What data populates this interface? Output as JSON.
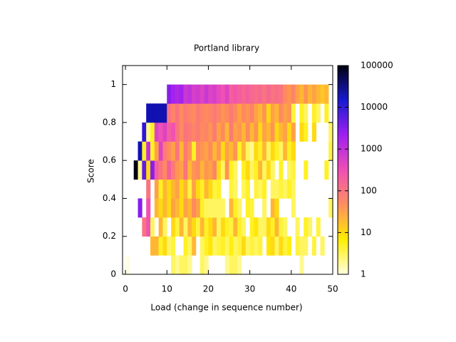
{
  "chart_data": {
    "type": "heatmap",
    "title": "Portland library",
    "xlabel": "Load (change in sequence number)",
    "ylabel": "Score",
    "x_bins": [
      0,
      1,
      2,
      3,
      4,
      5,
      6,
      7,
      8,
      9,
      10,
      11,
      12,
      13,
      14,
      15,
      16,
      17,
      18,
      19,
      20,
      21,
      22,
      23,
      24,
      25,
      26,
      27,
      28,
      29,
      30,
      31,
      32,
      33,
      34,
      35,
      36,
      37,
      38,
      39,
      40,
      41,
      42,
      43,
      44,
      45,
      46,
      47,
      48,
      49,
      50
    ],
    "y_bins": [
      0,
      0.1,
      0.2,
      0.3,
      0.4,
      0.5,
      0.6,
      0.7,
      0.8,
      0.9,
      1.0
    ],
    "z": [
      [
        1,
        null,
        null,
        null,
        null,
        null,
        null,
        null,
        null,
        null,
        null,
        3,
        2,
        3,
        3,
        2,
        null,
        null,
        3,
        2,
        null,
        null,
        null,
        null,
        2,
        3,
        3,
        2,
        null,
        null,
        null,
        null,
        null,
        null,
        null,
        null,
        null,
        null,
        null,
        null,
        null,
        null,
        2,
        null,
        null,
        null,
        null,
        null,
        null,
        null
      ],
      [
        null,
        null,
        null,
        null,
        null,
        null,
        20,
        20,
        5,
        10,
        3,
        4,
        null,
        null,
        5,
        3,
        20,
        null,
        3,
        5,
        8,
        3,
        4,
        5,
        3,
        6,
        3,
        4,
        10,
        3,
        4,
        3,
        4,
        null,
        8,
        10,
        3,
        10,
        4,
        6,
        null,
        4,
        3,
        3,
        null,
        4,
        null,
        3,
        null,
        null
      ],
      [
        null,
        null,
        null,
        null,
        100,
        300,
        3,
        null,
        20,
        3,
        null,
        10,
        4,
        20,
        3,
        20,
        10,
        4,
        20,
        5,
        10,
        20,
        3,
        10,
        5,
        4,
        20,
        5,
        3,
        null,
        5,
        8,
        3,
        3,
        10,
        5,
        20,
        4,
        3,
        null,
        null,
        3,
        null,
        5,
        3,
        null,
        4,
        null,
        null,
        null
      ],
      [
        null,
        null,
        null,
        3000,
        null,
        300,
        null,
        20,
        10,
        20,
        10,
        30,
        20,
        10,
        30,
        20,
        50,
        30,
        5,
        3,
        3,
        3,
        3,
        3,
        null,
        20,
        5,
        3,
        null,
        5,
        4,
        null,
        null,
        3,
        null,
        20,
        10,
        null,
        null,
        null,
        3,
        null,
        null,
        null,
        null,
        null,
        null,
        null,
        null,
        3
      ],
      [
        null,
        null,
        null,
        null,
        null,
        100,
        null,
        30,
        5,
        20,
        10,
        20,
        30,
        10,
        20,
        4,
        30,
        10,
        5,
        20,
        10,
        4,
        5,
        null,
        null,
        4,
        3,
        null,
        3,
        5,
        null,
        4,
        3,
        5,
        null,
        3,
        3,
        4,
        3,
        5,
        3,
        null,
        null,
        null,
        null,
        null,
        null,
        null,
        null,
        null
      ],
      [
        null,
        null,
        100000,
        2,
        5000,
        10,
        3000,
        200,
        100,
        50,
        200,
        80,
        40,
        30,
        100,
        20,
        40,
        50,
        20,
        40,
        30,
        60,
        10,
        3,
        40,
        5,
        3,
        null,
        5,
        10,
        3,
        5,
        20,
        3,
        10,
        3,
        null,
        5,
        null,
        3,
        4,
        null,
        null,
        5,
        null,
        null,
        null,
        null,
        5,
        null
      ],
      [
        null,
        null,
        null,
        20000,
        5,
        1000,
        5,
        30,
        500,
        80,
        50,
        30,
        100,
        20,
        80,
        40,
        5,
        50,
        40,
        30,
        50,
        20,
        40,
        10,
        30,
        20,
        40,
        5,
        20,
        3,
        2,
        10,
        5,
        20,
        3,
        10,
        5,
        3,
        20,
        5,
        10,
        null,
        null,
        null,
        null,
        null,
        null,
        null,
        null,
        4
      ],
      [
        null,
        null,
        null,
        null,
        10000,
        2,
        5,
        500,
        300,
        500,
        200,
        300,
        100,
        50,
        100,
        80,
        60,
        80,
        50,
        60,
        40,
        80,
        30,
        50,
        20,
        80,
        30,
        40,
        20,
        50,
        20,
        40,
        10,
        30,
        20,
        40,
        10,
        20,
        30,
        10,
        30,
        null,
        10,
        5,
        null,
        10,
        null,
        null,
        null,
        3
      ],
      [
        null,
        null,
        null,
        null,
        null,
        20000,
        20000,
        20000,
        20000,
        20000,
        100,
        60,
        100,
        50,
        80,
        60,
        50,
        80,
        60,
        50,
        60,
        80,
        60,
        40,
        50,
        80,
        50,
        30,
        50,
        40,
        60,
        30,
        20,
        40,
        10,
        30,
        20,
        50,
        30,
        40,
        4,
        null,
        5,
        3,
        null,
        5,
        3,
        null,
        5,
        null
      ],
      [
        null,
        null,
        null,
        null,
        null,
        null,
        null,
        null,
        null,
        null,
        3000,
        2000,
        1500,
        2000,
        800,
        1000,
        600,
        700,
        500,
        800,
        500,
        600,
        400,
        300,
        500,
        200,
        250,
        200,
        150,
        200,
        150,
        120,
        150,
        100,
        150,
        100,
        120,
        100,
        50,
        40,
        60,
        30,
        20,
        40,
        20,
        30,
        20,
        15,
        20,
        null
      ]
    ],
    "xlim": [
      -0.7,
      50
    ],
    "ylim": [
      0,
      1.1
    ],
    "xticks": [
      0,
      10,
      20,
      30,
      40,
      50
    ],
    "yticks": [
      0,
      0.2,
      0.4,
      0.6,
      0.8,
      1
    ],
    "zlim": [
      1,
      100000
    ],
    "zticks": [
      1,
      10,
      100,
      1000,
      10000,
      100000
    ],
    "zlog": true,
    "colormap": [
      "#ffffe0",
      "#ffee00",
      "#ff8c5a",
      "#f04fb5",
      "#a020f0",
      "#1414d0",
      "#000010"
    ]
  }
}
